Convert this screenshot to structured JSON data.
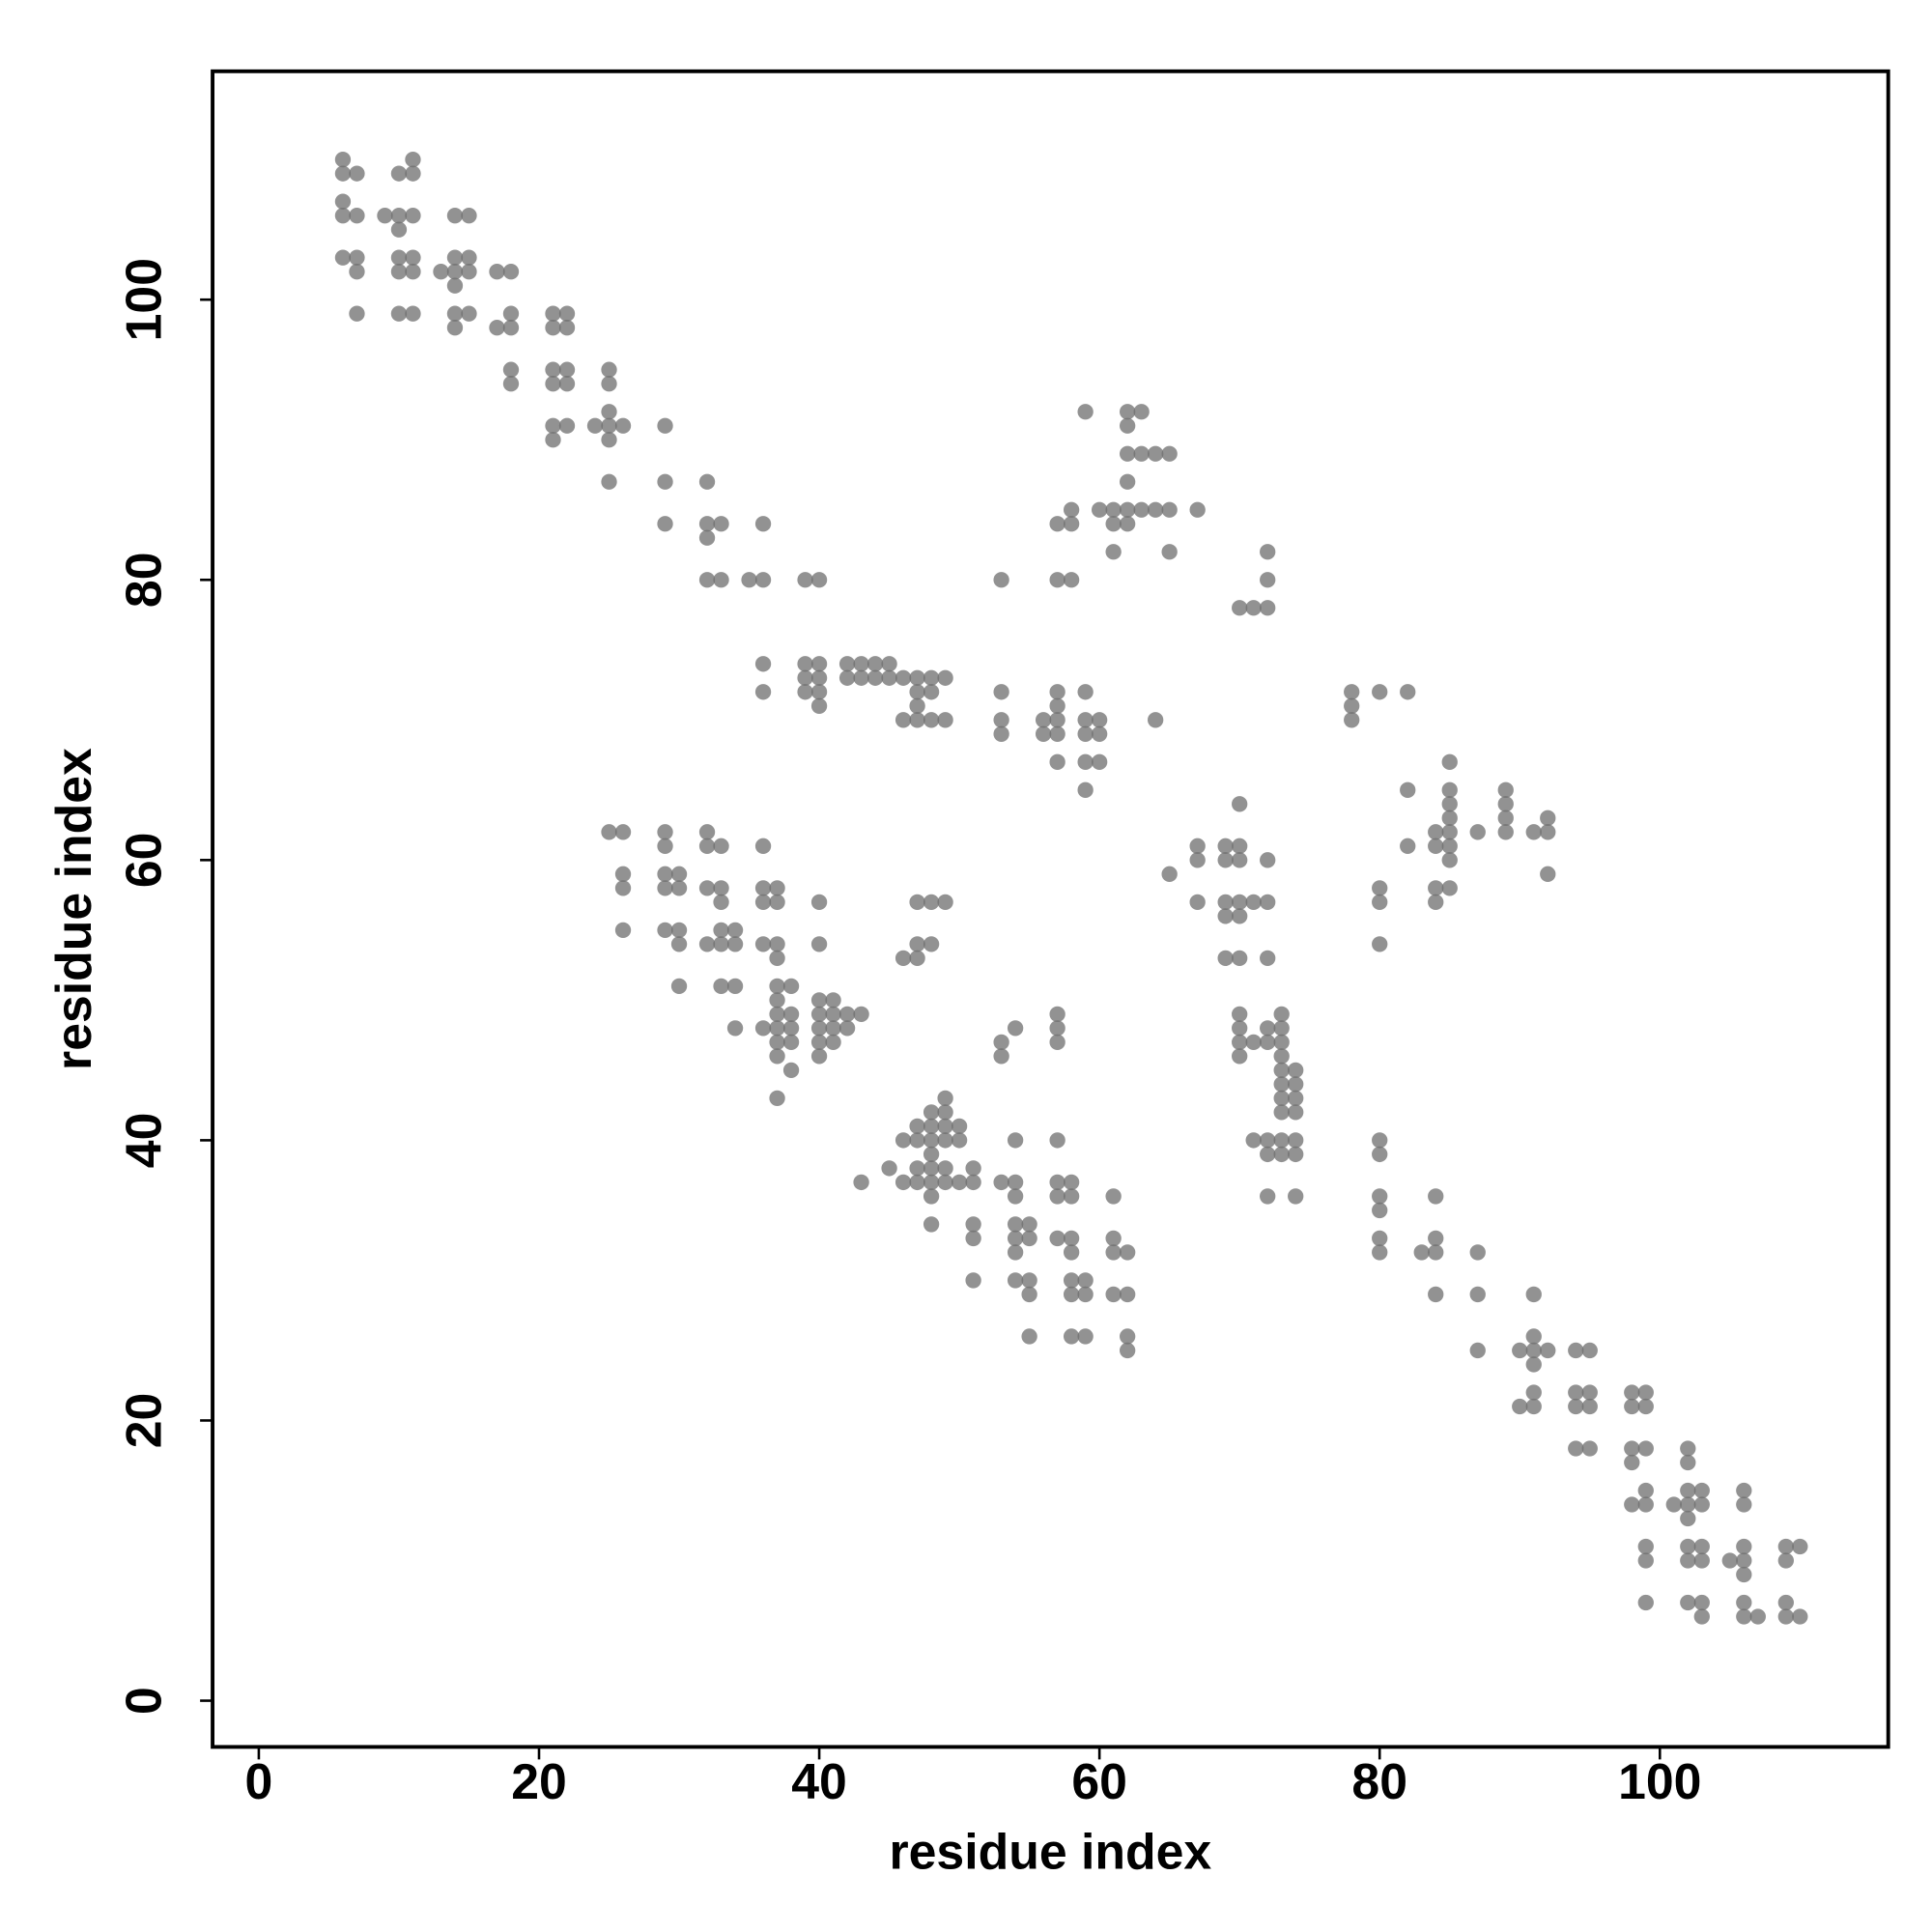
{
  "chart_data": {
    "type": "scatter",
    "x_label": "residue index",
    "y_label": "residue index",
    "color": "#6e6e6e",
    "xlim": [
      -3.3,
      116.3
    ],
    "ylim": [
      -3.3,
      116.3
    ],
    "xticks": [
      0,
      20,
      40,
      60,
      80,
      100
    ],
    "yticks": [
      0,
      20,
      40,
      60,
      80,
      100
    ],
    "x": [
      6,
      6,
      6,
      6,
      6,
      7,
      7,
      7,
      7,
      7,
      9,
      10,
      10,
      10,
      10,
      10,
      10,
      11,
      11,
      11,
      11,
      11,
      11,
      13,
      14,
      14,
      14,
      14,
      14,
      14,
      15,
      15,
      15,
      15,
      17,
      17,
      18,
      18,
      18,
      18,
      18,
      21,
      21,
      21,
      21,
      21,
      21,
      22,
      22,
      22,
      22,
      22,
      24,
      25,
      25,
      25,
      25,
      25,
      25,
      25,
      26,
      26,
      26,
      26,
      26,
      29,
      29,
      29,
      29,
      29,
      29,
      29,
      29,
      30,
      30,
      30,
      30,
      30,
      32,
      32,
      32,
      32,
      32,
      32,
      32,
      32,
      33,
      33,
      33,
      33,
      33,
      33,
      33,
      33,
      34,
      34,
      34,
      34,
      35,
      36,
      36,
      36,
      36,
      36,
      36,
      36,
      36,
      36,
      37,
      37,
      37,
      37,
      37,
      37,
      37,
      37,
      37,
      37,
      37,
      38,
      38,
      38,
      38,
      38,
      39,
      39,
      39,
      39,
      40,
      40,
      40,
      40,
      40,
      40,
      40,
      40,
      40,
      40,
      40,
      40,
      41,
      41,
      41,
      41,
      42,
      42,
      42,
      42,
      43,
      43,
      43,
      43,
      44,
      44,
      45,
      45,
      45,
      46,
      46,
      46,
      46,
      46,
      47,
      47,
      47,
      47,
      47,
      47,
      47,
      47,
      47,
      47,
      47,
      48,
      48,
      48,
      48,
      48,
      48,
      48,
      48,
      48,
      48,
      48,
      48,
      48,
      49,
      49,
      49,
      49,
      49,
      49,
      49,
      49,
      49,
      50,
      50,
      50,
      51,
      51,
      51,
      51,
      51,
      53,
      53,
      53,
      53,
      53,
      53,
      53,
      54,
      54,
      54,
      54,
      54,
      54,
      54,
      54,
      55,
      55,
      55,
      55,
      55,
      56,
      56,
      57,
      57,
      57,
      57,
      57,
      57,
      57,
      57,
      57,
      57,
      57,
      57,
      57,
      57,
      58,
      58,
      58,
      58,
      58,
      58,
      58,
      58,
      58,
      58,
      59,
      59,
      59,
      59,
      59,
      59,
      59,
      59,
      59,
      60,
      60,
      60,
      60,
      61,
      61,
      61,
      61,
      61,
      61,
      61,
      62,
      62,
      62,
      62,
      62,
      62,
      62,
      62,
      62,
      62,
      63,
      63,
      63,
      64,
      64,
      64,
      65,
      65,
      65,
      65,
      67,
      67,
      67,
      67,
      69,
      69,
      69,
      69,
      69,
      70,
      70,
      70,
      70,
      70,
      70,
      70,
      70,
      70,
      70,
      70,
      71,
      71,
      71,
      71,
      72,
      72,
      72,
      72,
      72,
      72,
      72,
      72,
      72,
      72,
      72,
      73,
      73,
      73,
      73,
      73,
      73,
      73,
      73,
      73,
      73,
      74,
      74,
      74,
      74,
      74,
      74,
      74,
      78,
      78,
      78,
      80,
      80,
      80,
      80,
      80,
      80,
      80,
      80,
      80,
      80,
      82,
      82,
      82,
      83,
      84,
      84,
      84,
      84,
      84,
      84,
      84,
      84,
      85,
      85,
      85,
      85,
      85,
      85,
      85,
      85,
      87,
      87,
      87,
      87,
      89,
      89,
      89,
      89,
      90,
      90,
      91,
      91,
      91,
      91,
      91,
      91,
      91,
      92,
      92,
      92,
      92,
      94,
      94,
      94,
      94,
      95,
      95,
      95,
      95,
      98,
      98,
      98,
      98,
      98,
      99,
      99,
      99,
      99,
      99,
      99,
      99,
      99,
      101,
      102,
      102,
      102,
      102,
      102,
      102,
      102,
      102,
      103,
      103,
      103,
      103,
      103,
      103,
      105,
      106,
      106,
      106,
      106,
      106,
      106,
      106,
      107,
      109,
      109,
      109,
      109,
      110,
      110
    ],
    "values": [
      110,
      109,
      107,
      106,
      103,
      109,
      106,
      103,
      102,
      99,
      106,
      109,
      106,
      105,
      103,
      102,
      99,
      110,
      109,
      106,
      103,
      102,
      99,
      102,
      106,
      103,
      102,
      101,
      99,
      98,
      106,
      103,
      102,
      99,
      102,
      98,
      102,
      99,
      98,
      95,
      94,
      99,
      98,
      95,
      94,
      91,
      90,
      99,
      98,
      95,
      94,
      91,
      91,
      95,
      94,
      92,
      91,
      90,
      87,
      62,
      91,
      62,
      59,
      58,
      55,
      91,
      87,
      84,
      62,
      61,
      59,
      58,
      55,
      59,
      58,
      55,
      54,
      51,
      87,
      84,
      83,
      80,
      62,
      61,
      58,
      54,
      84,
      80,
      61,
      58,
      57,
      55,
      54,
      51,
      55,
      54,
      51,
      48,
      80,
      84,
      80,
      74,
      72,
      61,
      58,
      57,
      54,
      48,
      58,
      57,
      54,
      53,
      51,
      50,
      49,
      48,
      47,
      46,
      43,
      51,
      49,
      48,
      47,
      45,
      80,
      74,
      73,
      72,
      80,
      74,
      73,
      72,
      71,
      57,
      54,
      50,
      49,
      48,
      47,
      46,
      50,
      49,
      48,
      47,
      74,
      73,
      49,
      48,
      74,
      73,
      49,
      37,
      74,
      73,
      74,
      73,
      38,
      73,
      70,
      53,
      40,
      37,
      73,
      72,
      71,
      70,
      57,
      54,
      53,
      41,
      40,
      38,
      37,
      73,
      72,
      70,
      57,
      54,
      42,
      41,
      40,
      39,
      38,
      37,
      36,
      34,
      73,
      70,
      57,
      43,
      42,
      41,
      40,
      38,
      37,
      41,
      40,
      37,
      38,
      37,
      34,
      33,
      30,
      80,
      72,
      70,
      69,
      47,
      46,
      37,
      48,
      40,
      37,
      36,
      34,
      33,
      32,
      30,
      34,
      33,
      30,
      29,
      26,
      70,
      69,
      84,
      80,
      72,
      71,
      70,
      69,
      67,
      49,
      48,
      47,
      40,
      37,
      36,
      33,
      85,
      84,
      80,
      37,
      36,
      33,
      32,
      30,
      29,
      26,
      92,
      72,
      70,
      69,
      67,
      65,
      30,
      29,
      26,
      85,
      70,
      69,
      67,
      85,
      84,
      82,
      36,
      33,
      32,
      29,
      92,
      91,
      89,
      87,
      85,
      84,
      32,
      29,
      26,
      25,
      92,
      89,
      85,
      89,
      85,
      70,
      89,
      85,
      82,
      59,
      85,
      61,
      60,
      57,
      61,
      60,
      57,
      56,
      53,
      78,
      64,
      61,
      60,
      57,
      56,
      53,
      49,
      48,
      47,
      46,
      78,
      57,
      47,
      40,
      82,
      80,
      78,
      60,
      57,
      53,
      48,
      47,
      40,
      39,
      36,
      49,
      48,
      47,
      46,
      45,
      44,
      43,
      42,
      40,
      39,
      45,
      44,
      43,
      42,
      40,
      39,
      36,
      72,
      71,
      70,
      72,
      58,
      57,
      54,
      40,
      39,
      36,
      35,
      33,
      32,
      72,
      65,
      61,
      32,
      62,
      61,
      58,
      57,
      36,
      33,
      32,
      29,
      67,
      65,
      64,
      63,
      62,
      61,
      60,
      58,
      62,
      32,
      29,
      25,
      65,
      64,
      63,
      62,
      25,
      21,
      62,
      29,
      26,
      25,
      24,
      22,
      21,
      63,
      62,
      59,
      25,
      25,
      22,
      21,
      18,
      25,
      22,
      21,
      18,
      22,
      21,
      18,
      17,
      14,
      22,
      21,
      18,
      15,
      14,
      11,
      10,
      7,
      14,
      18,
      17,
      15,
      14,
      13,
      11,
      10,
      7,
      15,
      14,
      11,
      10,
      7,
      6,
      10,
      15,
      14,
      11,
      10,
      9,
      7,
      6,
      6,
      11,
      10,
      7,
      6,
      11,
      6
    ]
  }
}
